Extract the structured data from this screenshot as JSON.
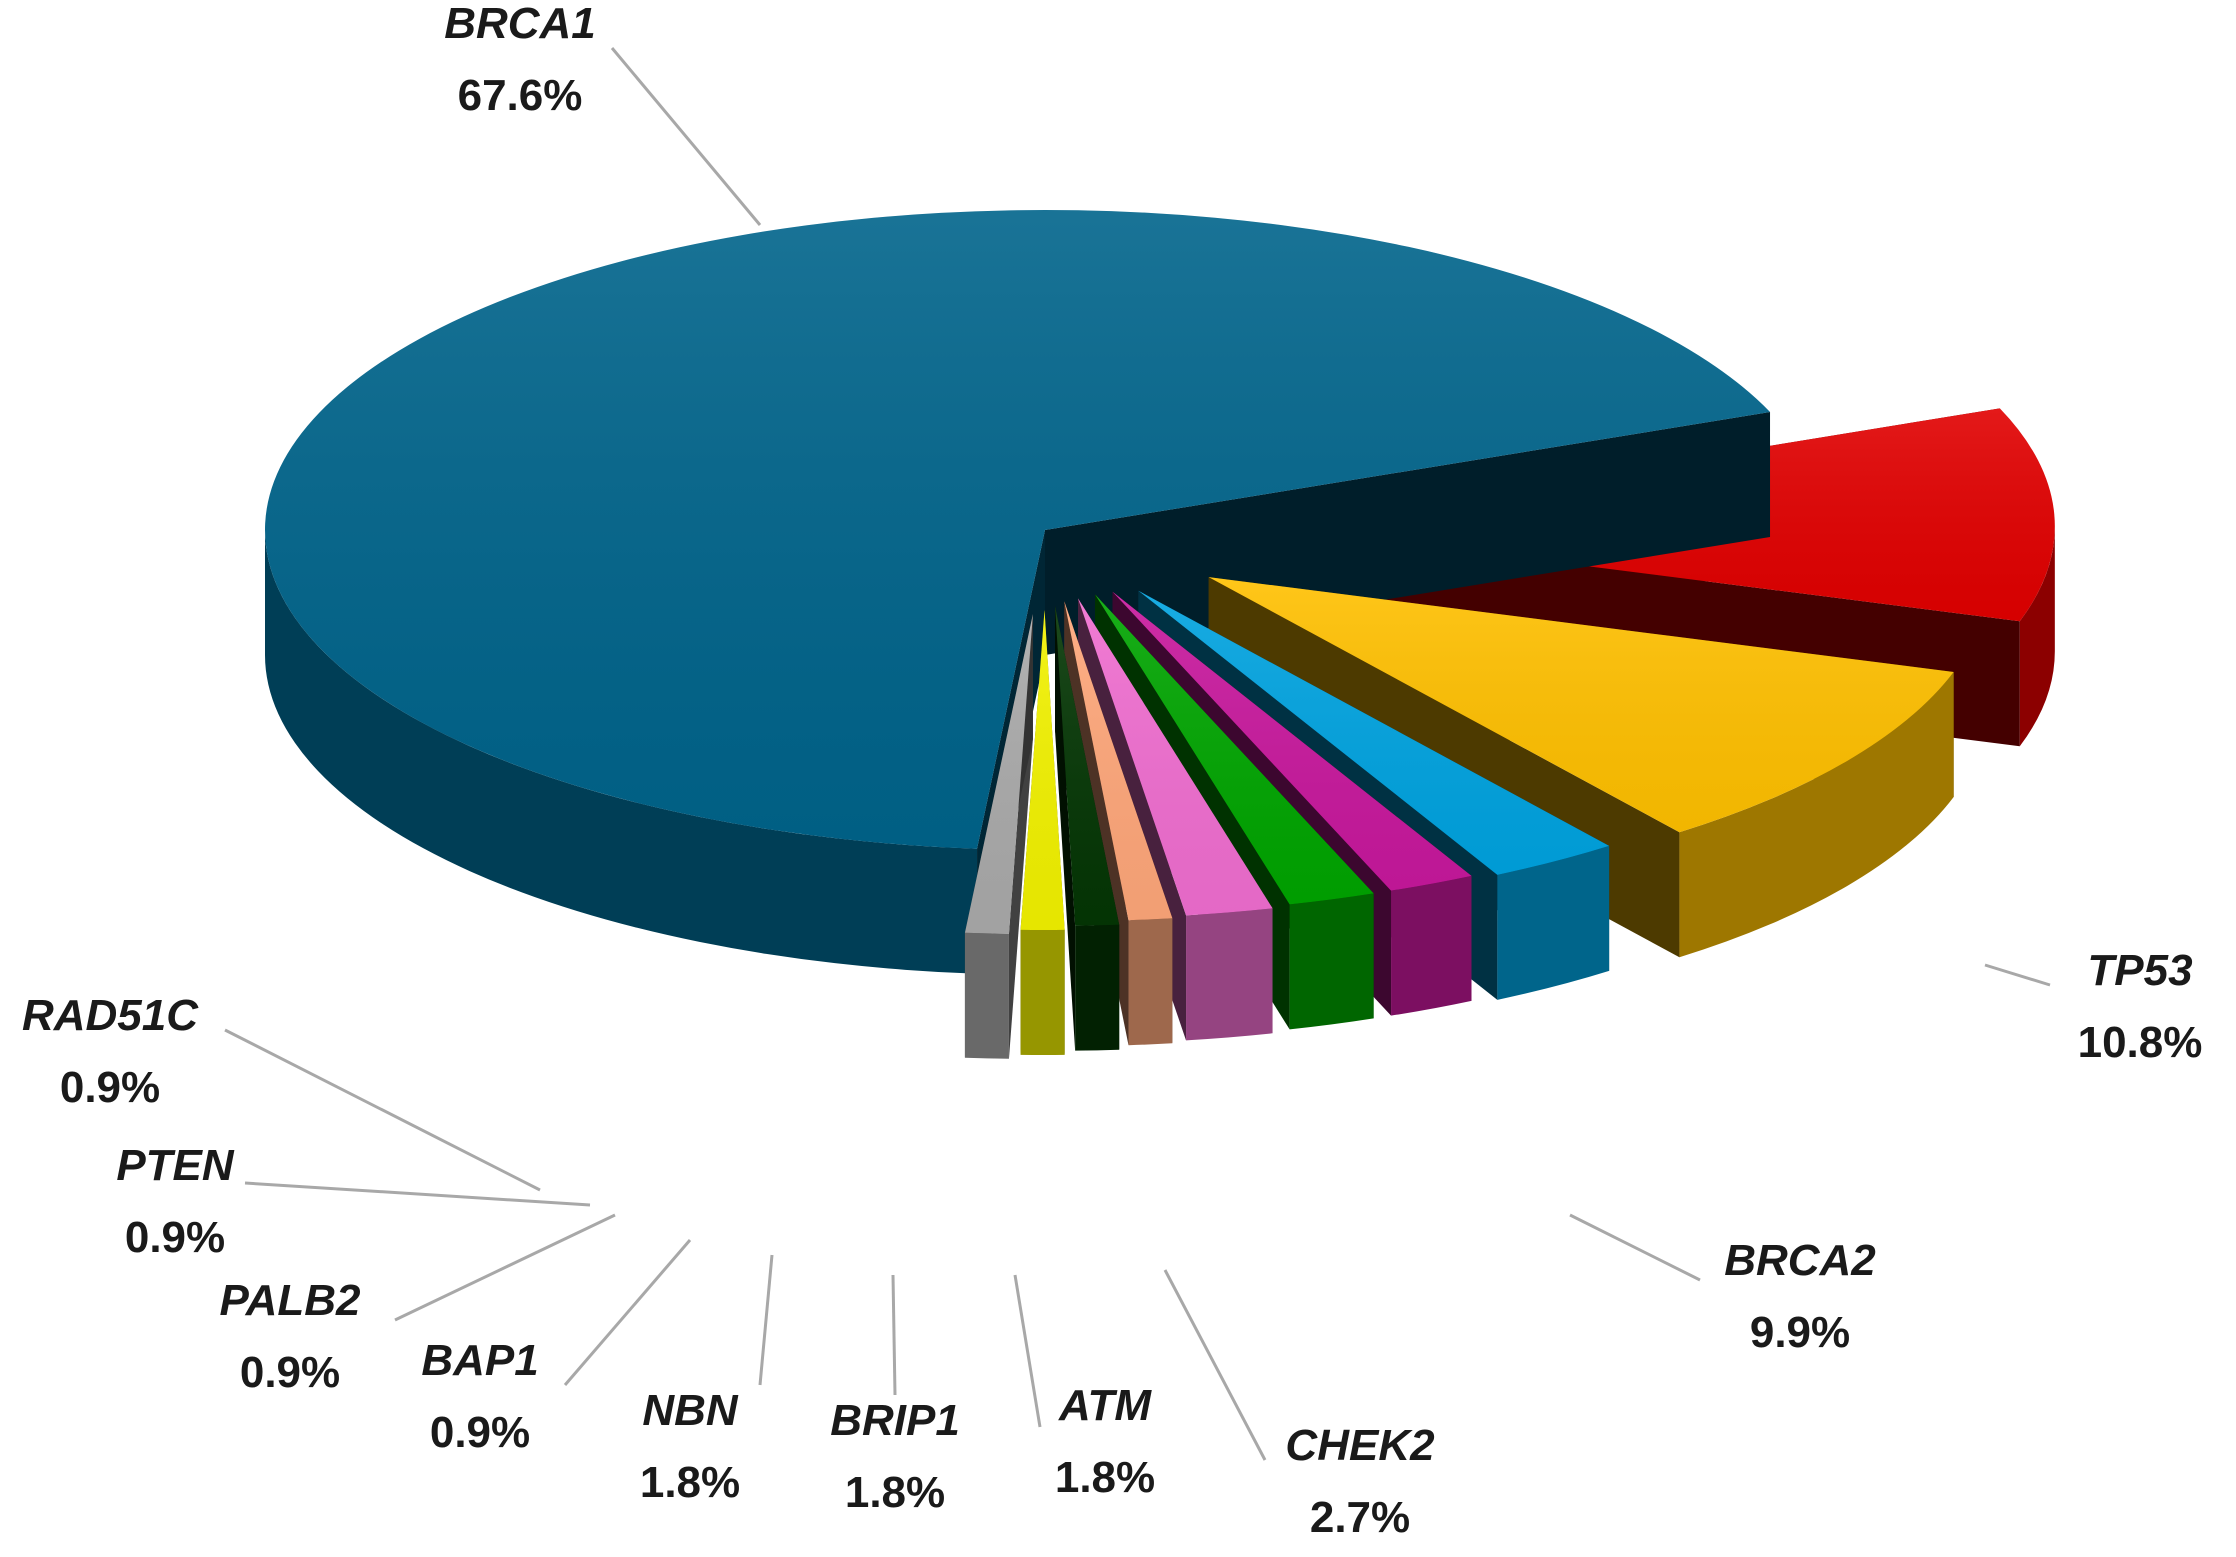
{
  "chart_data": {
    "type": "pie",
    "style": "3d-exploded",
    "categories": [
      "BRCA1",
      "TP53",
      "BRCA2",
      "CHEK2",
      "ATM",
      "BRIP1",
      "NBN",
      "BAP1",
      "PALB2",
      "PTEN",
      "RAD51C"
    ],
    "values": [
      67.6,
      10.8,
      9.9,
      2.7,
      1.8,
      1.8,
      1.8,
      0.9,
      0.9,
      0.9,
      0.9
    ],
    "labels": [
      "67.6%",
      "10.8%",
      "9.9%",
      "2.7%",
      "1.8%",
      "1.8%",
      "1.8%",
      "0.9%",
      "0.9%",
      "0.9%",
      "0.9%"
    ],
    "colors": [
      "#00648b",
      "#e10000",
      "#ffc000",
      "#00a3e0",
      "#c8189d",
      "#00a500",
      "#f06ed0",
      "#ffa77a",
      "#043604",
      "#f2f200",
      "#aaaaaa"
    ],
    "title": "",
    "legend": "none (leader-line labels)"
  }
}
